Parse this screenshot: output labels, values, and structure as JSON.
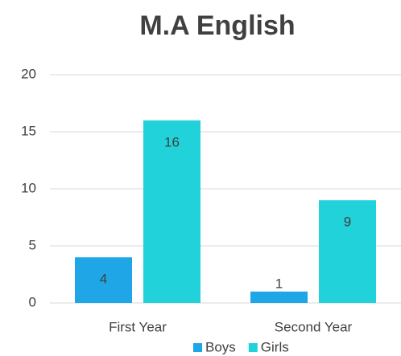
{
  "chart_data": {
    "type": "bar",
    "title": "M.A English",
    "categories": [
      "First Year",
      "Second Year"
    ],
    "series": [
      {
        "name": "Boys",
        "color": "#1ea6e6",
        "values": [
          4,
          1
        ]
      },
      {
        "name": "Girls",
        "color": "#22d2da",
        "values": [
          16,
          9
        ]
      }
    ],
    "ylim": [
      0,
      20
    ],
    "yticks": [
      0,
      5,
      10,
      15,
      20
    ],
    "grid": true,
    "legend": "bottom"
  }
}
